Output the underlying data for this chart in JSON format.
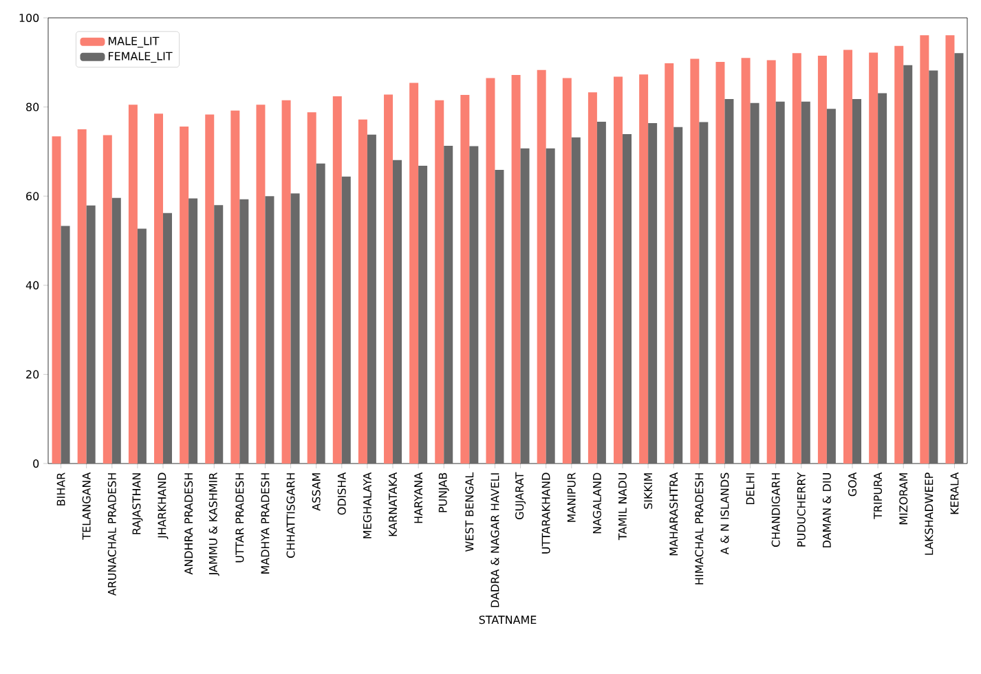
{
  "chart_data": {
    "type": "bar",
    "xlabel": "STATNAME",
    "categories": [
      "BIHAR",
      "TELANGANA",
      "ARUNACHAL PRADESH",
      "RAJASTHAN",
      "JHARKHAND",
      "ANDHRA PRADESH",
      "JAMMU & KASHMIR",
      "UTTAR PRADESH",
      "MADHYA PRADESH",
      "CHHATTISGARH",
      "ASSAM",
      "ODISHA",
      "MEGHALAYA",
      "KARNATAKA",
      "HARYANA",
      "PUNJAB",
      "WEST BENGAL",
      "DADRA & NAGAR HAVELI",
      "GUJARAT",
      "UTTARAKHAND",
      "MANIPUR",
      "NAGALAND",
      "TAMIL NADU",
      "SIKKIM",
      "MAHARASHTRA",
      "HIMACHAL PRADESH",
      "A & N ISLANDS",
      "DELHI",
      "CHANDIGARH",
      "PUDUCHERRY",
      "DAMAN & DIU",
      "GOA",
      "TRIPURA",
      "MIZORAM",
      "LAKSHADWEEP",
      "KERALA"
    ],
    "series": [
      {
        "name": "MALE_LIT",
        "color": "#fa8072",
        "values": [
          73.4,
          75.0,
          73.7,
          80.5,
          78.5,
          75.6,
          78.3,
          79.2,
          80.5,
          81.5,
          78.8,
          82.4,
          77.2,
          82.8,
          85.4,
          81.5,
          82.7,
          86.5,
          87.2,
          88.3,
          86.5,
          83.3,
          86.8,
          87.3,
          89.8,
          90.8,
          90.1,
          91.0,
          90.5,
          92.1,
          91.5,
          92.8,
          92.2,
          93.7,
          96.1,
          96.1
        ]
      },
      {
        "name": "FEMALE_LIT",
        "color": "#696969",
        "values": [
          53.3,
          57.9,
          59.6,
          52.7,
          56.2,
          59.5,
          58.0,
          59.3,
          60.0,
          60.6,
          67.3,
          64.4,
          73.8,
          68.1,
          66.8,
          71.3,
          71.2,
          65.9,
          70.7,
          70.7,
          73.2,
          76.7,
          73.9,
          76.4,
          75.5,
          76.6,
          81.8,
          80.9,
          81.2,
          81.2,
          79.6,
          81.8,
          83.1,
          89.4,
          88.2,
          92.1
        ]
      }
    ],
    "ylim": [
      0,
      100
    ],
    "yticks": [
      0,
      20,
      40,
      60,
      80,
      100
    ],
    "legend": "top left"
  }
}
